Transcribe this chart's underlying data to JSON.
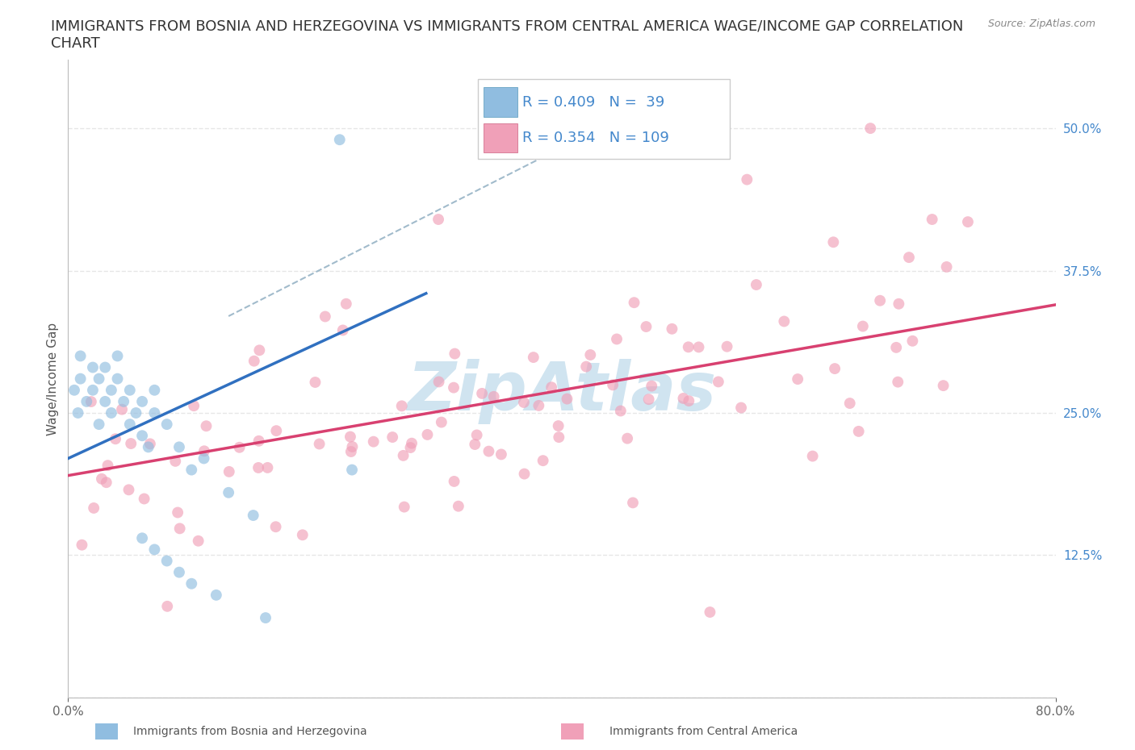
{
  "title_line1": "IMMIGRANTS FROM BOSNIA AND HERZEGOVINA VS IMMIGRANTS FROM CENTRAL AMERICA WAGE/INCOME GAP CORRELATION",
  "title_line2": "CHART",
  "source_text": "Source: ZipAtlas.com",
  "ylabel": "Wage/Income Gap",
  "x_min": 0.0,
  "x_max": 0.8,
  "y_min": 0.0,
  "y_max": 0.56,
  "y_ticks": [
    0.0,
    0.125,
    0.25,
    0.375,
    0.5
  ],
  "y_tick_labels": [
    "",
    "12.5%",
    "25.0%",
    "37.5%",
    "50.0%"
  ],
  "legend_entries": [
    {
      "label": "Immigrants from Bosnia and Herzegovina",
      "color": "#a8c8e8",
      "R": 0.409,
      "N": 39
    },
    {
      "label": "Immigrants from Central America",
      "color": "#f4a8b8",
      "R": 0.354,
      "N": 109
    }
  ],
  "scatter_alpha": 0.65,
  "scatter_size": 100,
  "blue_color": "#90bde0",
  "pink_color": "#f0a0b8",
  "blue_line_color": "#3070c0",
  "pink_line_color": "#d84070",
  "blue_dashed_color": "#a0b8d0",
  "watermark_text": "ZipAtlas",
  "watermark_color": "#d0e4f0",
  "grid_color": "#e0e0e0",
  "title_fontsize": 13,
  "axis_label_fontsize": 11,
  "tick_fontsize": 11,
  "legend_fontsize": 13,
  "R_N_color": "#4488cc",
  "tick_color": "#4488cc"
}
